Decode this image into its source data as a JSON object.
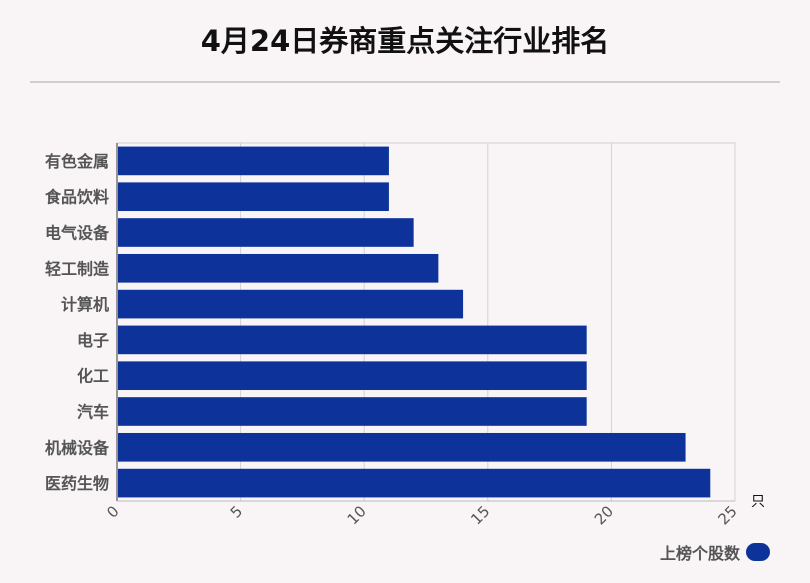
{
  "chart_data": {
    "type": "bar",
    "orientation": "horizontal",
    "title": "4月24日券商重点关注行业排名",
    "categories": [
      "有色金属",
      "食品饮料",
      "电气设备",
      "轻工制造",
      "计算机",
      "电子",
      "化工",
      "汽车",
      "机械设备",
      "医药生物"
    ],
    "series": [
      {
        "name": "上榜个股数",
        "values": [
          11,
          11,
          12,
          13,
          14,
          19,
          19,
          19,
          23,
          24
        ],
        "color": "#0d3299"
      }
    ],
    "xlim": [
      0,
      25
    ],
    "xticks": [
      "0",
      "5",
      "10",
      "15",
      "20",
      "25"
    ],
    "xunit": "只",
    "grid": true,
    "legend": "bottom-right"
  }
}
